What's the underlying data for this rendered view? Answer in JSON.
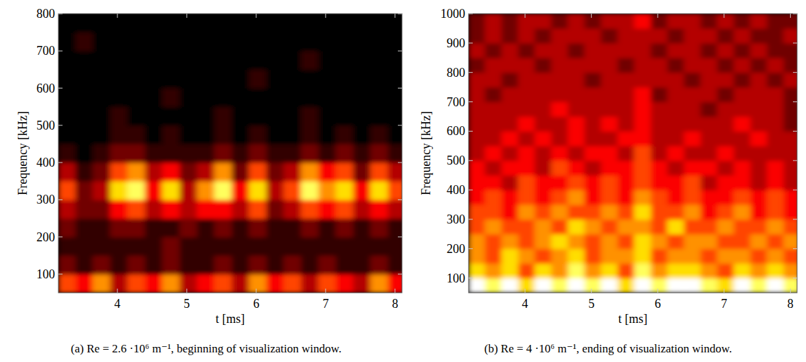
{
  "chart_data": [
    {
      "type": "heatmap",
      "caption": "(a) Re = 2.6 ·10⁶ m⁻¹, beginning of visualization window.",
      "xlabel": "t [ms]",
      "ylabel": "Frequency [kHz]",
      "xlim": [
        3.15,
        8.1
      ],
      "xticks": [
        4,
        5,
        6,
        7,
        8
      ],
      "ylim": [
        50,
        800
      ],
      "yticks": [
        100,
        200,
        300,
        400,
        500,
        600,
        700,
        800
      ],
      "zlim": [
        0,
        9
      ],
      "x": [
        3.275,
        3.525,
        3.775,
        4.025,
        4.275,
        4.525,
        4.775,
        5.025,
        5.275,
        5.525,
        5.775,
        6.025,
        6.275,
        6.525,
        6.775,
        7.025,
        7.275,
        7.525,
        7.775,
        8.025
      ],
      "y": [
        75,
        125,
        175,
        225,
        275,
        325,
        375,
        425,
        475,
        525,
        575,
        625,
        675,
        725,
        775
      ],
      "z": [
        [
          5,
          4,
          6,
          3,
          5,
          4,
          6,
          3,
          4,
          5,
          3,
          6,
          4,
          5,
          3,
          5,
          4,
          3,
          6,
          4
        ],
        [
          2,
          1,
          2,
          1,
          2,
          1,
          2,
          1,
          1,
          2,
          1,
          2,
          1,
          2,
          1,
          2,
          1,
          1,
          2,
          1
        ],
        [
          1,
          1,
          1,
          1,
          1,
          1,
          2,
          1,
          1,
          1,
          1,
          1,
          1,
          1,
          1,
          1,
          1,
          1,
          1,
          1
        ],
        [
          2,
          1,
          1,
          2,
          2,
          1,
          1,
          2,
          1,
          2,
          1,
          2,
          1,
          1,
          2,
          1,
          2,
          1,
          2,
          1
        ],
        [
          3,
          2,
          2,
          4,
          5,
          3,
          4,
          3,
          4,
          4,
          3,
          5,
          2,
          3,
          5,
          4,
          5,
          3,
          4,
          3
        ],
        [
          5,
          2,
          3,
          7,
          8,
          4,
          7,
          3,
          6,
          8,
          4,
          7,
          3,
          5,
          8,
          6,
          7,
          4,
          7,
          5
        ],
        [
          3,
          1,
          2,
          5,
          6,
          3,
          4,
          2,
          3,
          6,
          2,
          5,
          2,
          3,
          6,
          4,
          5,
          2,
          5,
          3
        ],
        [
          1,
          0,
          1,
          2,
          2,
          1,
          1,
          1,
          1,
          2,
          1,
          2,
          1,
          1,
          2,
          1,
          2,
          1,
          2,
          1
        ],
        [
          0,
          0,
          0,
          1,
          1,
          0,
          1,
          0,
          0,
          1,
          0,
          1,
          0,
          0,
          1,
          0,
          1,
          0,
          1,
          0
        ],
        [
          0,
          0,
          0,
          1,
          0,
          0,
          0,
          0,
          0,
          1,
          0,
          0,
          0,
          0,
          1,
          0,
          0,
          0,
          0,
          0
        ],
        [
          0,
          0,
          0,
          0,
          0,
          0,
          1,
          0,
          0,
          0,
          0,
          0,
          0,
          0,
          0,
          0,
          0,
          0,
          0,
          0
        ],
        [
          0,
          0,
          0,
          0,
          0,
          0,
          0,
          0,
          0,
          0,
          0,
          1,
          0,
          0,
          0,
          0,
          0,
          0,
          0,
          0
        ],
        [
          0,
          0,
          0,
          0,
          0,
          0,
          0,
          0,
          0,
          0,
          0,
          0,
          0,
          0,
          1,
          0,
          0,
          0,
          0,
          0
        ],
        [
          0,
          1,
          0,
          0,
          0,
          0,
          0,
          0,
          0,
          0,
          0,
          0,
          0,
          0,
          0,
          0,
          0,
          0,
          0,
          0
        ],
        [
          0,
          0,
          0,
          0,
          0,
          0,
          0,
          0,
          0,
          0,
          0,
          0,
          0,
          0,
          0,
          0,
          0,
          0,
          0,
          0
        ]
      ]
    },
    {
      "type": "heatmap",
      "caption": "(b) Re = 4 ·10⁶ m⁻¹, ending of visualization window.",
      "xlabel": "t [ms]",
      "ylabel": "Frequency [kHz]",
      "xlim": [
        3.15,
        8.1
      ],
      "xticks": [
        4,
        5,
        6,
        7,
        8
      ],
      "ylim": [
        50,
        1000
      ],
      "yticks": [
        100,
        200,
        300,
        400,
        500,
        600,
        700,
        800,
        900,
        1000
      ],
      "zlim": [
        0,
        9
      ],
      "x": [
        3.275,
        3.525,
        3.775,
        4.025,
        4.275,
        4.525,
        4.775,
        5.025,
        5.275,
        5.525,
        5.775,
        6.025,
        6.275,
        6.525,
        6.775,
        7.025,
        7.275,
        7.525,
        7.775,
        8.025
      ],
      "y": [
        75,
        125,
        175,
        225,
        275,
        325,
        375,
        425,
        475,
        525,
        575,
        625,
        675,
        725,
        775,
        825,
        875,
        925,
        975
      ],
      "z": [
        [
          9,
          8,
          9,
          7,
          9,
          8,
          9,
          8,
          9,
          7,
          9,
          8,
          9,
          9,
          8,
          7,
          9,
          8,
          9,
          8
        ],
        [
          7,
          6,
          7,
          5,
          7,
          6,
          8,
          6,
          7,
          5,
          8,
          6,
          7,
          7,
          6,
          5,
          7,
          6,
          7,
          6
        ],
        [
          6,
          5,
          7,
          6,
          5,
          6,
          7,
          5,
          6,
          6,
          7,
          5,
          6,
          6,
          5,
          6,
          6,
          5,
          6,
          5
        ],
        [
          6,
          5,
          6,
          5,
          6,
          7,
          6,
          5,
          6,
          5,
          7,
          6,
          5,
          6,
          6,
          5,
          5,
          6,
          5,
          6
        ],
        [
          5,
          6,
          5,
          5,
          6,
          5,
          7,
          6,
          5,
          6,
          6,
          5,
          7,
          5,
          5,
          6,
          5,
          5,
          6,
          5
        ],
        [
          5,
          5,
          4,
          6,
          5,
          6,
          5,
          5,
          6,
          5,
          7,
          5,
          5,
          6,
          4,
          5,
          6,
          4,
          5,
          4
        ],
        [
          4,
          5,
          4,
          5,
          4,
          5,
          6,
          4,
          5,
          4,
          6,
          5,
          4,
          5,
          4,
          4,
          5,
          4,
          5,
          4
        ],
        [
          4,
          4,
          3,
          5,
          4,
          4,
          5,
          4,
          5,
          4,
          5,
          4,
          4,
          5,
          3,
          4,
          4,
          3,
          4,
          3
        ],
        [
          4,
          3,
          4,
          4,
          3,
          5,
          4,
          3,
          4,
          4,
          5,
          4,
          3,
          4,
          4,
          3,
          4,
          3,
          4,
          3
        ],
        [
          3,
          4,
          3,
          4,
          3,
          4,
          3,
          4,
          4,
          3,
          5,
          3,
          4,
          3,
          3,
          4,
          3,
          3,
          3,
          3
        ],
        [
          3,
          3,
          4,
          3,
          4,
          3,
          4,
          3,
          3,
          4,
          4,
          3,
          3,
          4,
          3,
          3,
          3,
          4,
          3,
          3
        ],
        [
          3,
          3,
          3,
          4,
          3,
          3,
          4,
          3,
          4,
          3,
          4,
          3,
          3,
          3,
          3,
          3,
          4,
          3,
          3,
          2
        ],
        [
          3,
          3,
          3,
          3,
          3,
          4,
          3,
          3,
          3,
          3,
          4,
          3,
          3,
          3,
          2,
          3,
          3,
          3,
          3,
          2
        ],
        [
          3,
          2,
          3,
          3,
          3,
          3,
          3,
          3,
          3,
          3,
          4,
          2,
          3,
          3,
          3,
          2,
          3,
          3,
          3,
          2
        ],
        [
          3,
          3,
          2,
          3,
          3,
          3,
          3,
          2,
          3,
          3,
          3,
          3,
          3,
          2,
          3,
          3,
          2,
          3,
          2,
          3
        ],
        [
          2,
          3,
          3,
          3,
          2,
          3,
          3,
          3,
          3,
          2,
          3,
          3,
          2,
          3,
          3,
          2,
          3,
          2,
          3,
          2
        ],
        [
          3,
          2,
          3,
          2,
          3,
          3,
          2,
          3,
          3,
          3,
          3,
          2,
          3,
          3,
          2,
          3,
          2,
          3,
          2,
          2
        ],
        [
          2,
          3,
          2,
          3,
          2,
          3,
          3,
          3,
          2,
          3,
          3,
          3,
          2,
          3,
          3,
          2,
          3,
          2,
          2,
          3
        ],
        [
          2,
          3,
          2,
          3,
          3,
          2,
          3,
          2,
          3,
          3,
          4,
          2,
          3,
          3,
          2,
          3,
          2,
          3,
          2,
          2
        ]
      ]
    }
  ]
}
